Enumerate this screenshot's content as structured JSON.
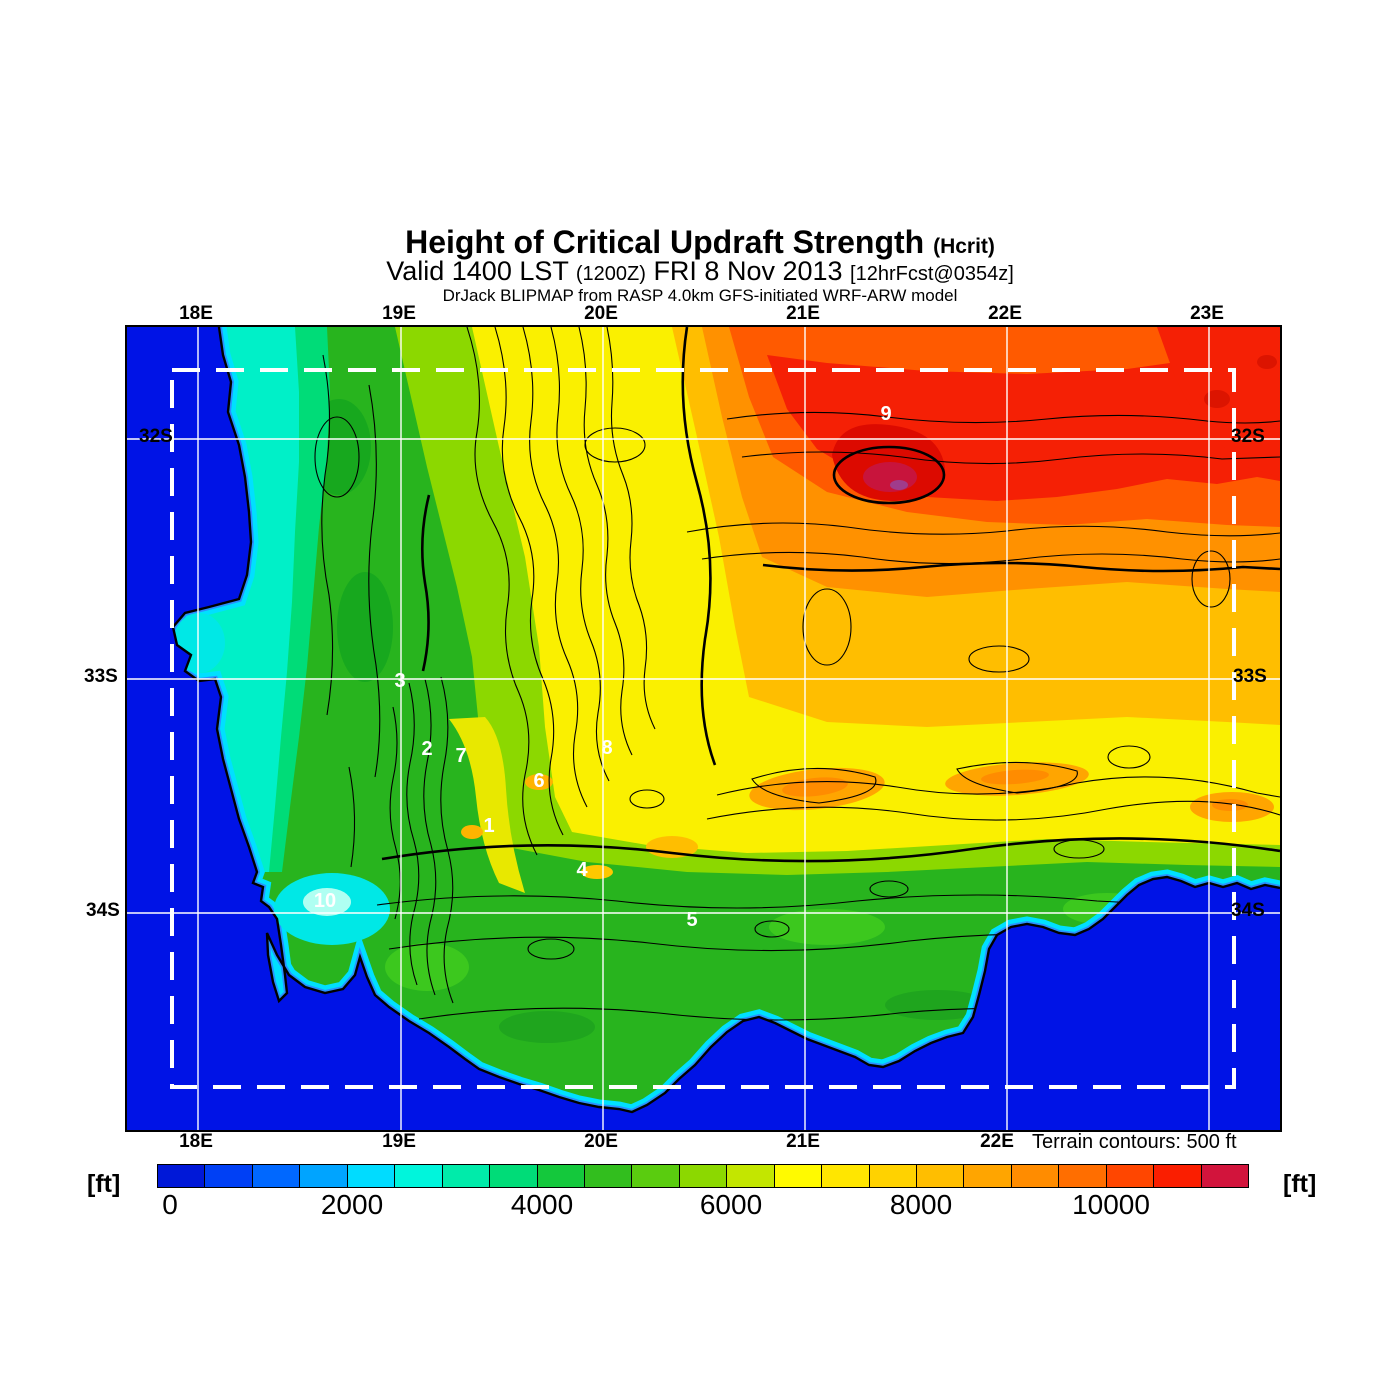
{
  "header": {
    "title": "Height of Critical Updraft Strength",
    "title_suffix": "(Hcrit)",
    "valid_prefix": "Valid 1400 LST",
    "valid_zulu": "(1200Z)",
    "valid_date": "FRI 8 Nov 2013",
    "valid_fcst": "[12hrFcst@0354z]",
    "model_line": "DrJack BLIPMAP from RASP 4.0km GFS-initiated WRF-ARW model"
  },
  "map": {
    "lon_labels_top": [
      "18E",
      "19E",
      "20E",
      "21E",
      "22E",
      "23E"
    ],
    "lon_labels_bottom": [
      "18E",
      "19E",
      "20E",
      "21E",
      "22E"
    ],
    "lat_labels_left": [
      "32S",
      "33S",
      "34S"
    ],
    "lat_labels_right": [
      "32S",
      "33S",
      "34S"
    ],
    "site_labels": [
      "1",
      "2",
      "3",
      "4",
      "5",
      "6",
      "7",
      "8",
      "9",
      "10"
    ],
    "ocean_color": "#0013E6",
    "grid_color": "#FFFFFF",
    "contour_color": "#000000",
    "note": "Terrain contours: 500 ft"
  },
  "legend": {
    "unit_left": "[ft]",
    "unit_right": "[ft]",
    "ticks": [
      "0",
      "2000",
      "4000",
      "6000",
      "8000",
      "10000"
    ],
    "min_ft": 0,
    "max_ft": 11500,
    "step_ft": 500,
    "segment_colors": [
      "#0018D8",
      "#0040F5",
      "#0068FF",
      "#00A4FF",
      "#00DCFF",
      "#00F5DC",
      "#00EBAA",
      "#00DC78",
      "#14C83C",
      "#32BE1E",
      "#5ACC0F",
      "#8CD800",
      "#C3E600",
      "#FFFA00",
      "#FFE600",
      "#FFD200",
      "#FFBE00",
      "#FFA500",
      "#FF8C00",
      "#FF6E00",
      "#FF4600",
      "#FA1E00",
      "#D2143C"
    ]
  }
}
